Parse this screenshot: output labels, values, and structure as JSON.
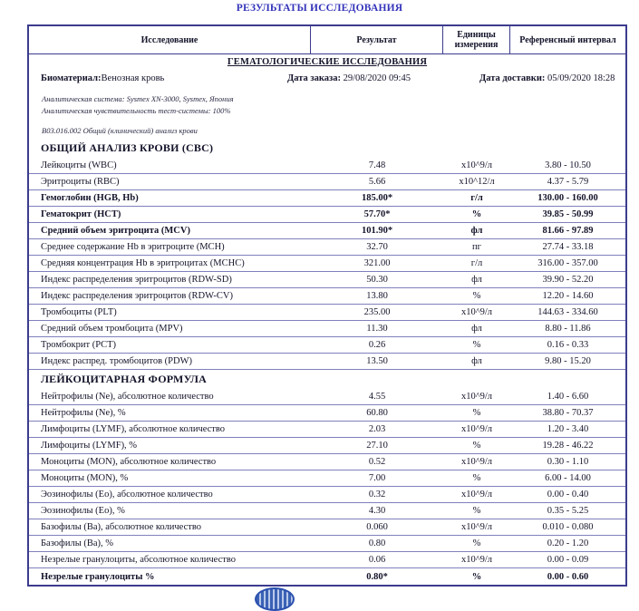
{
  "title": "РЕЗУЛЬТАТЫ ИССЛЕДОВАНИЯ",
  "colors": {
    "title_blue": "#3333bb",
    "border_navy": "#3c3c8e",
    "row_line": "#8080bd",
    "text": "#14142b",
    "seal_blue": "#3b62b5"
  },
  "table": {
    "columns": [
      "Исследование",
      "Результат",
      "Единицы измерения",
      "Референсный интервал"
    ],
    "section_title": "ГЕМАТОЛОГИЧЕСКИЕ ИССЛЕДОВАНИЯ",
    "biomaterial_label": "Биоматериал:",
    "biomaterial_value": "Венозная кровь",
    "order_date_label": "Дата заказа:",
    "order_date_value": "29/08/2020 09:45",
    "delivery_date_label": "Дата доставки:",
    "delivery_date_value": "05/09/2020 18:28",
    "analytical_system": "Аналитическая система: Sysmex XN-3000, Sysmex, Япония",
    "analytical_sensitivity": "Аналитическая чувствительность тест-системы: 100%",
    "service_code": "В03.016.002 Общий (клинический) анализ крови",
    "groups": [
      {
        "header": "ОБЩИЙ АНАЛИЗ КРОВИ (CBC)",
        "rows": [
          {
            "name": "Лейкоциты (WBC)",
            "result": "7.48",
            "unit": "x10^9/л",
            "ref": "3.80 - 10.50",
            "flagged": false
          },
          {
            "name": "Эритроциты (RBC)",
            "result": "5.66",
            "unit": "x10^12/л",
            "ref": "4.37 - 5.79",
            "flagged": false
          },
          {
            "name": "Гемоглобин (HGB, Hb)",
            "result": "185.00*",
            "unit": "г/л",
            "ref": "130.00 - 160.00",
            "flagged": true
          },
          {
            "name": "Гематокрит (HCT)",
            "result": "57.70*",
            "unit": "%",
            "ref": "39.85 - 50.99",
            "flagged": true
          },
          {
            "name": "Средний объем эритроцита (MCV)",
            "result": "101.90*",
            "unit": "фл",
            "ref": "81.66 - 97.89",
            "flagged": true
          },
          {
            "name": "Среднее содержание Hb в эритроците (MCH)",
            "result": "32.70",
            "unit": "пг",
            "ref": "27.74 - 33.18",
            "flagged": false
          },
          {
            "name": "Средняя концентрация Hb в эритроцитах (MCHC)",
            "result": "321.00",
            "unit": "г/л",
            "ref": "316.00 - 357.00",
            "flagged": false
          },
          {
            "name": "Индекс распределения эритроцитов (RDW-SD)",
            "result": "50.30",
            "unit": "фл",
            "ref": "39.90 - 52.20",
            "flagged": false
          },
          {
            "name": "Индекс распределения эритроцитов (RDW-CV)",
            "result": "13.80",
            "unit": "%",
            "ref": "12.20 - 14.60",
            "flagged": false
          },
          {
            "name": "Тромбоциты (PLT)",
            "result": "235.00",
            "unit": "x10^9/л",
            "ref": "144.63 - 334.60",
            "flagged": false
          },
          {
            "name": "Средний объем тромбоцита (MPV)",
            "result": "11.30",
            "unit": "фл",
            "ref": "8.80 - 11.86",
            "flagged": false
          },
          {
            "name": "Тромбокрит (PCT)",
            "result": "0.26",
            "unit": "%",
            "ref": "0.16 - 0.33",
            "flagged": false
          },
          {
            "name": "Индекс распред. тромбоцитов (PDW)",
            "result": "13.50",
            "unit": "фл",
            "ref": "9.80 - 15.20",
            "flagged": false
          }
        ]
      },
      {
        "header": "ЛЕЙКОЦИТАРНАЯ ФОРМУЛА",
        "rows": [
          {
            "name": "Нейтрофилы (Ne), абсолютное количество",
            "result": "4.55",
            "unit": "x10^9/л",
            "ref": "1.40 - 6.60",
            "flagged": false
          },
          {
            "name": "Нейтрофилы (Ne), %",
            "result": "60.80",
            "unit": "%",
            "ref": "38.80 - 70.37",
            "flagged": false
          },
          {
            "name": "Лимфоциты (LYMF), абсолютное количество",
            "result": "2.03",
            "unit": "x10^9/л",
            "ref": "1.20 - 3.40",
            "flagged": false
          },
          {
            "name": "Лимфоциты (LYMF), %",
            "result": "27.10",
            "unit": "%",
            "ref": "19.28 - 46.22",
            "flagged": false
          },
          {
            "name": "Моноциты (MON), абсолютное количество",
            "result": "0.52",
            "unit": "x10^9/л",
            "ref": "0.30 - 1.10",
            "flagged": false
          },
          {
            "name": "Моноциты (MON), %",
            "result": "7.00",
            "unit": "%",
            "ref": "6.00 - 14.00",
            "flagged": false
          },
          {
            "name": "Эозинофилы (Eo), абсолютное количество",
            "result": "0.32",
            "unit": "x10^9/л",
            "ref": "0.00 - 0.40",
            "flagged": false
          },
          {
            "name": "Эозинофилы (Eo), %",
            "result": "4.30",
            "unit": "%",
            "ref": "0.35 - 5.25",
            "flagged": false
          },
          {
            "name": "Базофилы (Ba), абсолютное количество",
            "result": "0.060",
            "unit": "x10^9/л",
            "ref": "0.010 - 0.080",
            "flagged": false
          },
          {
            "name": "Базофилы (Ba), %",
            "result": "0.80",
            "unit": "%",
            "ref": "0.20 - 1.20",
            "flagged": false
          },
          {
            "name": "Незрелые гранулоциты, абсолютное количество",
            "result": "0.06",
            "unit": "x10^9/л",
            "ref": "0.00 - 0.09",
            "flagged": false
          },
          {
            "name": "Незрелые гранулоциты %",
            "result": "0.80*",
            "unit": "%",
            "ref": "0.00 - 0.60",
            "flagged": true
          }
        ]
      }
    ]
  }
}
